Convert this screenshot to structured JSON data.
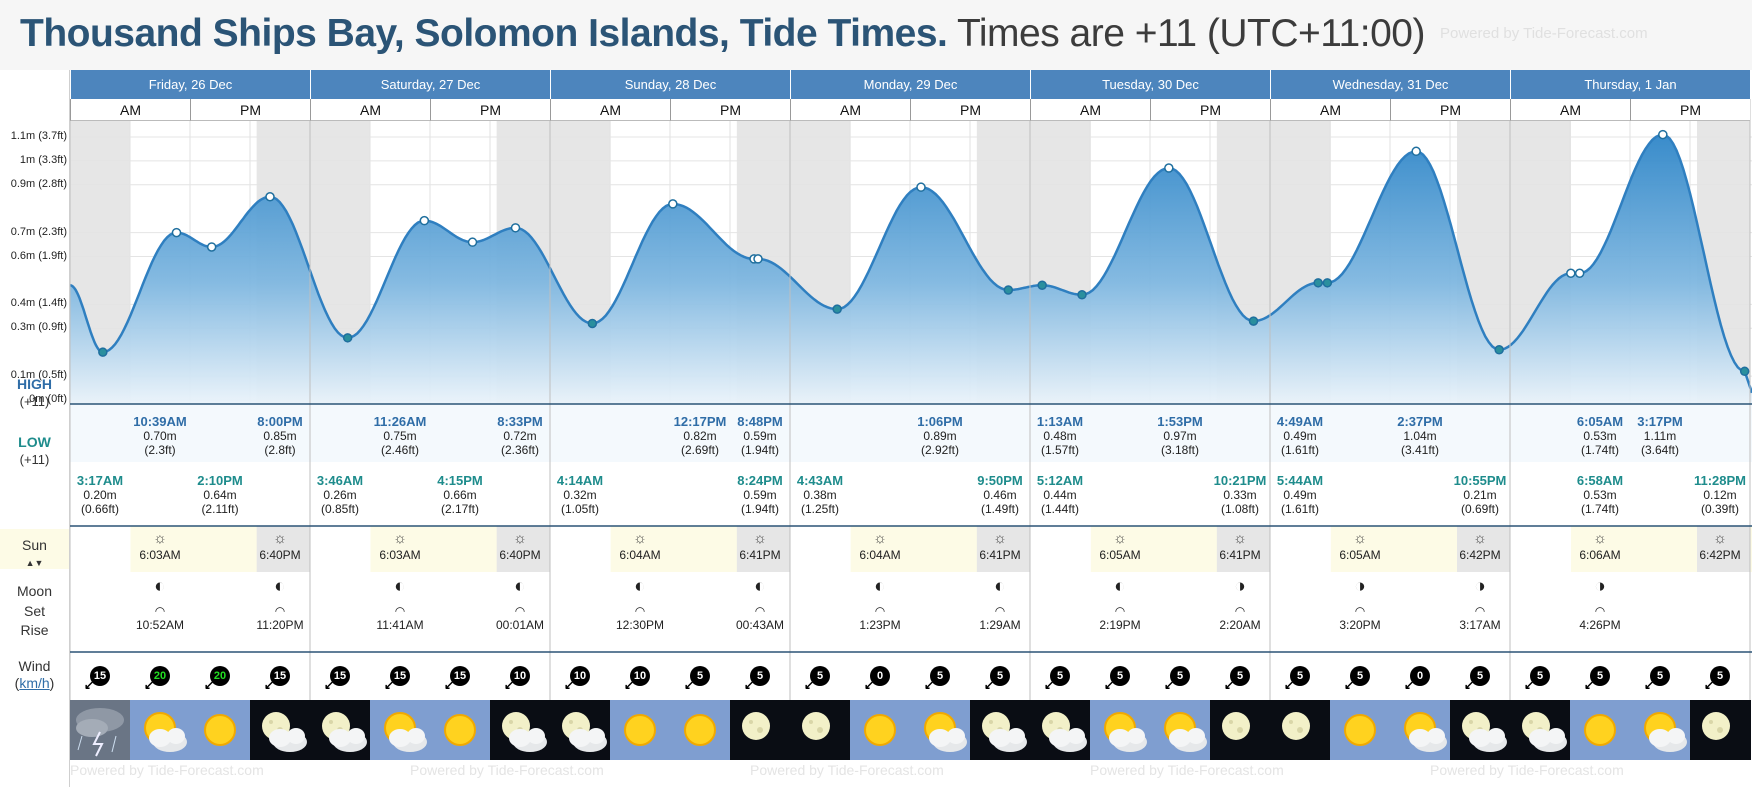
{
  "header": {
    "title_main": "Thousand Ships Bay, Solomon Islands, Tide Times.",
    "title_tz": "Times are +11 (UTC+11:00)",
    "powered_by": "Powered by Tide-Forecast.com"
  },
  "days": [
    {
      "label": "Friday, 26 Dec"
    },
    {
      "label": "Saturday, 27 Dec"
    },
    {
      "label": "Sunday, 28 Dec"
    },
    {
      "label": "Monday, 29 Dec"
    },
    {
      "label": "Tuesday, 30 Dec"
    },
    {
      "label": "Wednesday, 31 Dec"
    },
    {
      "label": "Thursday, 1 Jan"
    }
  ],
  "ampm": {
    "am": "AM",
    "pm": "PM"
  },
  "y_axis_labels": [
    "1.1m (3.7ft)",
    "1m (3.3ft)",
    "0.9m (2.8ft)",
    "0.7m (2.3ft)",
    "0.6m (1.9ft)",
    "0.4m (1.4ft)",
    "0.3m (0.9ft)",
    "0.1m (0.5ft)",
    "0m (0ft)"
  ],
  "row_labels": {
    "high": "HIGH",
    "high_tz": "(+11)",
    "low": "LOW",
    "low_tz": "(+11)",
    "sun": "Sun",
    "moon": "Moon",
    "set": "Set",
    "rise": "Rise",
    "wind": "Wind",
    "wind_unit": "km/h"
  },
  "chart_data": {
    "type": "area",
    "title": "Thousand Ships Bay, Solomon Islands, Tide Times.",
    "ylabel": "",
    "ylim": [
      0,
      1.15
    ],
    "highs": [
      {
        "time": "10:39AM",
        "m": "0.70m",
        "ft": "(2.3ft)",
        "value": 0.7
      },
      {
        "time": "8:00PM",
        "m": "0.85m",
        "ft": "(2.8ft)",
        "value": 0.85
      },
      {
        "time": "11:26AM",
        "m": "0.75m",
        "ft": "(2.46ft)",
        "value": 0.75
      },
      {
        "time": "8:33PM",
        "m": "0.72m",
        "ft": "(2.36ft)",
        "value": 0.72
      },
      {
        "time": "12:17PM",
        "m": "0.82m",
        "ft": "(2.69ft)",
        "value": 0.82
      },
      {
        "time": "8:48PM",
        "m": "0.59m",
        "ft": "(1.94ft)",
        "value": 0.59
      },
      {
        "time": "1:06PM",
        "m": "0.89m",
        "ft": "(2.92ft)",
        "value": 0.89
      },
      {
        "time": "1:13AM",
        "m": "0.48m",
        "ft": "(1.57ft)",
        "value": 0.48
      },
      {
        "time": "1:53PM",
        "m": "0.97m",
        "ft": "(3.18ft)",
        "value": 0.97
      },
      {
        "time": "4:49AM",
        "m": "0.49m",
        "ft": "(1.61ft)",
        "value": 0.49
      },
      {
        "time": "2:37PM",
        "m": "1.04m",
        "ft": "(3.41ft)",
        "value": 1.04
      },
      {
        "time": "6:05AM",
        "m": "0.53m",
        "ft": "(1.74ft)",
        "value": 0.53
      },
      {
        "time": "3:17PM",
        "m": "1.11m",
        "ft": "(3.64ft)",
        "value": 1.11
      }
    ],
    "lows": [
      {
        "time": "3:17AM",
        "m": "0.20m",
        "ft": "(0.66ft)",
        "value": 0.2
      },
      {
        "time": "2:10PM",
        "m": "0.64m",
        "ft": "(2.11ft)",
        "value": 0.64
      },
      {
        "time": "3:46AM",
        "m": "0.26m",
        "ft": "(0.85ft)",
        "value": 0.26
      },
      {
        "time": "4:15PM",
        "m": "0.66m",
        "ft": "(2.17ft)",
        "value": 0.66
      },
      {
        "time": "4:14AM",
        "m": "0.32m",
        "ft": "(1.05ft)",
        "value": 0.32
      },
      {
        "time": "8:24PM",
        "m": "0.59m",
        "ft": "(1.94ft)",
        "value": 0.59
      },
      {
        "time": "4:43AM",
        "m": "0.38m",
        "ft": "(1.25ft)",
        "value": 0.38
      },
      {
        "time": "9:50PM",
        "m": "0.46m",
        "ft": "(1.49ft)",
        "value": 0.46
      },
      {
        "time": "5:12AM",
        "m": "0.44m",
        "ft": "(1.44ft)",
        "value": 0.44
      },
      {
        "time": "10:21PM",
        "m": "0.33m",
        "ft": "(1.08ft)",
        "value": 0.33
      },
      {
        "time": "5:44AM",
        "m": "0.49m",
        "ft": "(1.61ft)",
        "value": 0.49
      },
      {
        "time": "10:55PM",
        "m": "0.21m",
        "ft": "(0.69ft)",
        "value": 0.21
      },
      {
        "time": "6:58AM",
        "m": "0.53m",
        "ft": "(1.74ft)",
        "value": 0.53
      },
      {
        "time": "11:28PM",
        "m": "0.12m",
        "ft": "(0.39ft)",
        "value": 0.12
      }
    ]
  },
  "sun": [
    {
      "rise": "6:03AM",
      "set": "6:40PM"
    },
    {
      "rise": "6:03AM",
      "set": "6:40PM"
    },
    {
      "rise": "6:04AM",
      "set": "6:41PM"
    },
    {
      "rise": "6:04AM",
      "set": "6:41PM"
    },
    {
      "rise": "6:05AM",
      "set": "6:41PM"
    },
    {
      "rise": "6:05AM",
      "set": "6:42PM"
    },
    {
      "rise": "6:06AM",
      "set": "6:42PM"
    }
  ],
  "moon": [
    "10:52AM",
    "11:20PM",
    "11:41AM",
    "00:01AM",
    "12:30PM",
    "00:43AM",
    "1:23PM",
    "1:29AM",
    "2:19PM",
    "2:20AM",
    "3:20PM",
    "3:17AM",
    "4:26PM"
  ],
  "wind": [
    "15",
    "20",
    "20",
    "15",
    "15",
    "15",
    "15",
    "10",
    "10",
    "10",
    "5",
    "5",
    "5",
    "0",
    "5",
    "5",
    "5",
    "5",
    "5",
    "5",
    "5",
    "5",
    "0",
    "5",
    "5",
    "5",
    "5",
    "5"
  ],
  "weather_icons": [
    "storm",
    "sun-cloud",
    "sun",
    "moon-cloud",
    "moon-cloud",
    "sun-cloud",
    "sun",
    "moon-cloud",
    "moon-cloud",
    "sun",
    "sun",
    "moon",
    "moon",
    "sun",
    "sun-cloud",
    "moon-cloud",
    "moon-cloud",
    "sun-cloud",
    "sun-cloud",
    "moon",
    "moon",
    "sun",
    "sun-cloud",
    "moon-cloud",
    "moon-cloud",
    "sun",
    "sun-cloud",
    "moon"
  ],
  "colors": {
    "header_blue": "#4d85bd",
    "tide_blue": "#2f86c8",
    "title_blue": "#2b5476"
  }
}
